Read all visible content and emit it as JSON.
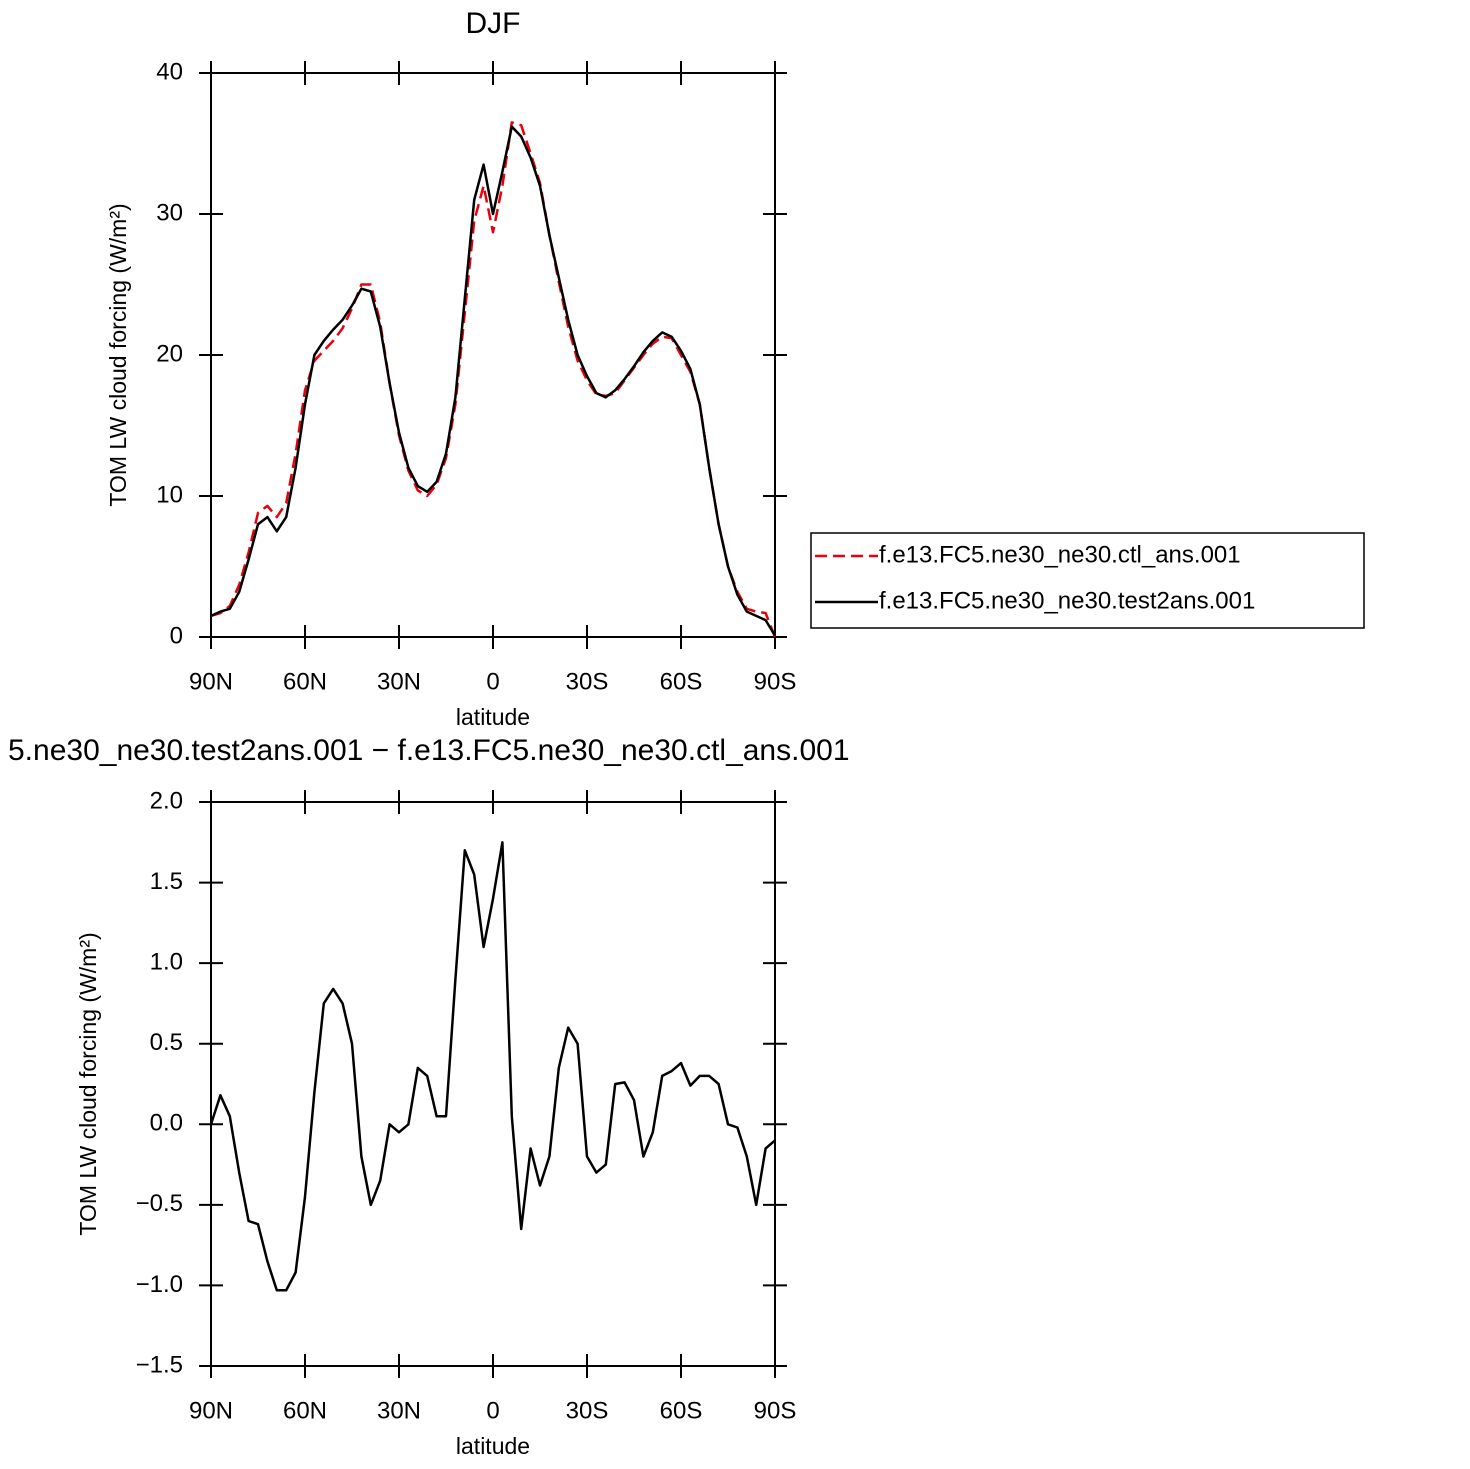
{
  "chart_data": [
    {
      "type": "line",
      "title": "DJF",
      "xlabel": "latitude",
      "ylabel": "TOM LW cloud forcing (W/m²)",
      "x": [
        90,
        87,
        84,
        81,
        78,
        75,
        72,
        69,
        66,
        63,
        60,
        57,
        54,
        51,
        48,
        45,
        42,
        39,
        36,
        33,
        30,
        27,
        24,
        21,
        18,
        15,
        12,
        9,
        6,
        3,
        0,
        -3,
        -6,
        -9,
        -12,
        -15,
        -18,
        -21,
        -24,
        -27,
        -30,
        -33,
        -36,
        -39,
        -42,
        -45,
        -48,
        -51,
        -54,
        -57,
        -60,
        -63,
        -66,
        -69,
        -72,
        -75,
        -78,
        -81,
        -84,
        -87,
        -90
      ],
      "series": [
        {
          "name": "f.e13.FC5.ne30_ne30.ctl_ans.001",
          "color": "#e8000b",
          "dash": true,
          "values": [
            1.5,
            1.7,
            2.2,
            3.7,
            6,
            8.8,
            9.3,
            8.5,
            9.5,
            13,
            17.5,
            19.6,
            20.3,
            21,
            21.9,
            23.3,
            25,
            25,
            22.3,
            18,
            14.3,
            11.8,
            10.4,
            10,
            10.8,
            12.7,
            16.5,
            23,
            29.5,
            32,
            28.7,
            32,
            36.5,
            36.3,
            34.3,
            32.2,
            28.5,
            25.2,
            22,
            19.6,
            18.2,
            17.2,
            17.1,
            17.3,
            18.2,
            19.1,
            20,
            20.8,
            21.3,
            21.2,
            20,
            18.8,
            16.5,
            12,
            8,
            5,
            3.2,
            2,
            1.8,
            1.7,
            0
          ]
        },
        {
          "name": "f.e13.FC5.ne30_ne30.test2ans.001",
          "color": "#000000",
          "dash": false,
          "values": [
            1.5,
            1.8,
            2,
            3.2,
            5.5,
            8,
            8.5,
            7.5,
            8.5,
            12,
            16.5,
            20,
            21,
            21.8,
            22.5,
            23.5,
            24.7,
            24.5,
            22,
            18,
            14.5,
            12,
            10.7,
            10.3,
            11,
            13,
            17,
            24,
            31,
            33.5,
            30,
            33,
            36.2,
            35.5,
            34,
            32,
            28.5,
            25.5,
            22.5,
            20,
            18.5,
            17.3,
            17,
            17.5,
            18.3,
            19.2,
            20.2,
            21,
            21.6,
            21.3,
            20.3,
            19,
            16.5,
            12,
            8,
            5,
            3,
            1.8,
            1.5,
            1.2,
            0.1
          ]
        }
      ],
      "xlim": [
        90,
        -90
      ],
      "xticks": [
        {
          "value": 90,
          "label": "90N"
        },
        {
          "value": 60,
          "label": "60N"
        },
        {
          "value": 30,
          "label": "30N"
        },
        0,
        {
          "value": -30,
          "label": "30S"
        },
        {
          "value": -60,
          "label": "60S"
        },
        {
          "value": -90,
          "label": "90S"
        }
      ],
      "ylim": [
        0,
        40
      ],
      "yticks": [
        0,
        10,
        20,
        30,
        40
      ],
      "legend": "right"
    },
    {
      "type": "line",
      "title": "5.ne30_ne30.test2ans.001 − f.e13.FC5.ne30_ne30.ctl_ans.001",
      "xlabel": "latitude",
      "ylabel": "TOM LW cloud forcing (W/m²)",
      "x": [
        90,
        87,
        84,
        81,
        78,
        75,
        72,
        69,
        66,
        63,
        60,
        57,
        54,
        51,
        48,
        45,
        42,
        39,
        36,
        33,
        30,
        27,
        24,
        21,
        18,
        15,
        12,
        9,
        6,
        3,
        0,
        -3,
        -6,
        -9,
        -12,
        -15,
        -18,
        -21,
        -24,
        -27,
        -30,
        -33,
        -36,
        -39,
        -42,
        -45,
        -48,
        -51,
        -54,
        -57,
        -60,
        -63,
        -66,
        -69,
        -72,
        -75,
        -78,
        -81,
        -84,
        -87,
        -90
      ],
      "series": [
        {
          "color": "#000000",
          "dash": false,
          "values": [
            0,
            0.18,
            0.05,
            -0.3,
            -0.6,
            -0.62,
            -0.85,
            -1.03,
            -1.03,
            -0.92,
            -0.45,
            0.2,
            0.75,
            0.84,
            0.75,
            0.5,
            -0.2,
            -0.5,
            -0.35,
            0,
            -0.05,
            0,
            0.35,
            0.3,
            0.05,
            0.05,
            0.9,
            1.7,
            1.55,
            1.1,
            1.4,
            1.75,
            0.05,
            -0.65,
            -0.15,
            -0.38,
            -0.2,
            0.35,
            0.6,
            0.5,
            -0.2,
            -0.3,
            -0.25,
            0.25,
            0.26,
            0.15,
            -0.2,
            -0.05,
            0.3,
            0.33,
            0.38,
            0.24,
            0.3,
            0.3,
            0.25,
            0,
            -0.02,
            -0.2,
            -0.5,
            -0.15,
            -0.1
          ]
        }
      ],
      "xlim": [
        90,
        -90
      ],
      "xticks": [
        {
          "value": 90,
          "label": "90N"
        },
        {
          "value": 60,
          "label": "60N"
        },
        {
          "value": 30,
          "label": "30N"
        },
        0,
        {
          "value": -30,
          "label": "30S"
        },
        {
          "value": -60,
          "label": "60S"
        },
        {
          "value": -90,
          "label": "90S"
        }
      ],
      "ylim": [
        -1.5,
        2
      ],
      "yticks": [
        {
          "value": -1.5,
          "label": "−1.5"
        },
        {
          "value": -1,
          "label": "−1.0"
        },
        {
          "value": -0.5,
          "label": "−0.5"
        },
        {
          "value": 0,
          "label": "0.0"
        },
        0.5,
        {
          "value": 1,
          "label": "1.0"
        },
        1.5,
        {
          "value": 2,
          "label": "2.0"
        }
      ]
    }
  ]
}
